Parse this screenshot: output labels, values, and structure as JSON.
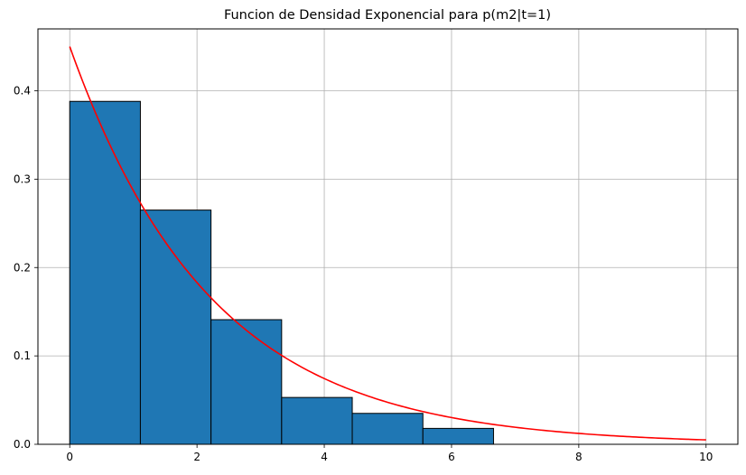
{
  "chart_data": {
    "type": "bar",
    "title": "Funcion de Densidad Exponencial para p(m2|t=1)",
    "xlabel": "",
    "ylabel": "",
    "xlim": [
      -0.5,
      10.5
    ],
    "ylim": [
      0,
      0.47
    ],
    "xticks": [
      0,
      2,
      4,
      6,
      8,
      10
    ],
    "xtick_labels": [
      "0",
      "2",
      "4",
      "6",
      "8",
      "10"
    ],
    "yticks": [
      0.0,
      0.1,
      0.2,
      0.3,
      0.4
    ],
    "ytick_labels": [
      "0.0",
      "0.1",
      "0.2",
      "0.3",
      "0.4"
    ],
    "grid": true,
    "legend": "none",
    "histogram": {
      "bin_edges": [
        0,
        1.11,
        2.22,
        3.33,
        4.44,
        5.55,
        6.66
      ],
      "values": [
        0.388,
        0.265,
        0.141,
        0.053,
        0.035,
        0.018
      ],
      "color": "#1f77b4",
      "edge_color": "#000000"
    },
    "series": [
      {
        "type": "line",
        "rate": 0.45,
        "formula": "0.45 * exp(-0.45 x)",
        "x_range": [
          0,
          10
        ],
        "color": "#ff0000"
      }
    ]
  }
}
